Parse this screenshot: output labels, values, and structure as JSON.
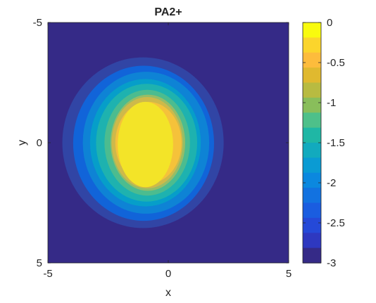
{
  "chart_data": {
    "type": "heatmap",
    "subtype": "filled-contour",
    "title": "PA2+",
    "xlabel": "x",
    "ylabel": "y",
    "xlim": [
      -5,
      5
    ],
    "ylim": [
      -5,
      5
    ],
    "y_axis_direction": "reversed",
    "x_ticks": [
      -5,
      0,
      5
    ],
    "y_ticks": [
      -5,
      0,
      5
    ],
    "grid": false,
    "colormap": "parula",
    "colorbar": {
      "range": [
        -3,
        0
      ],
      "ticks": [
        0,
        -0.5,
        -1,
        -1.5,
        -2,
        -2.5,
        -3
      ],
      "tick_labels": [
        "0",
        "-0.5",
        "-1",
        "-1.5",
        "-2",
        "-2.5",
        "-3"
      ],
      "placement": "right"
    },
    "contour_levels": [
      {
        "value": -3.0,
        "color": "#352a87",
        "x_range": [
          -5.0,
          5.0
        ],
        "y_range": [
          -5.0,
          5.0
        ]
      },
      {
        "value": -2.75,
        "color": "#3145a5",
        "x_range": [
          -4.4,
          2.3
        ],
        "y_range": [
          -3.55,
          3.55
        ]
      },
      {
        "value": -2.5,
        "color": "#1164d9",
        "x_range": [
          -3.95,
          1.9
        ],
        "y_range": [
          -3.2,
          3.25
        ]
      },
      {
        "value": -2.25,
        "color": "#0e83d5",
        "x_range": [
          -3.55,
          1.7
        ],
        "y_range": [
          -2.95,
          2.95
        ]
      },
      {
        "value": -2.0,
        "color": "#069ec9",
        "x_range": [
          -3.25,
          1.35
        ],
        "y_range": [
          -2.65,
          2.65
        ]
      },
      {
        "value": -1.75,
        "color": "#1eb2af",
        "x_range": [
          -3.0,
          1.2
        ],
        "y_range": [
          -2.45,
          2.45
        ]
      },
      {
        "value": -1.5,
        "color": "#4cbc8f",
        "x_range": [
          -2.65,
          0.9
        ],
        "y_range": [
          -2.2,
          2.2
        ]
      },
      {
        "value": -1.25,
        "color": "#96bd67",
        "x_range": [
          -2.4,
          0.7
        ],
        "y_range": [
          -2.0,
          2.0
        ]
      },
      {
        "value": -1.0,
        "color": "#ceb94a",
        "x_range": [
          -2.35,
          0.6
        ],
        "y_range": [
          -1.9,
          1.9
        ]
      },
      {
        "value": -0.75,
        "color": "#f5c23a",
        "x_range": [
          -2.2,
          0.55
        ],
        "y_range": [
          -1.7,
          1.7
        ]
      },
      {
        "value": -0.5,
        "color": "#f3e428",
        "x_range": [
          -2.1,
          0.2
        ],
        "y_range": [
          -1.7,
          1.85
        ]
      }
    ]
  }
}
